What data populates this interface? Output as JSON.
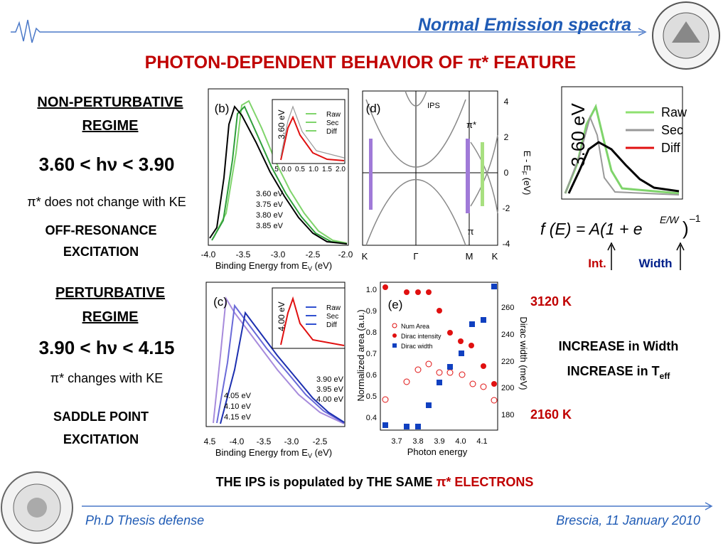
{
  "header": {
    "section": "Normal Emission spectra",
    "title": "PHOTON-DEPENDENT BEHAVIOR OF π* FEATURE"
  },
  "regime1": {
    "heading": [
      "NON-PERTURBATIVE",
      "REGIME"
    ],
    "range": "3.60 < hν < 3.90",
    "note": "π* does not change with KE",
    "excitation": [
      "OFF-RESONANCE",
      "EXCITATION"
    ]
  },
  "regime2": {
    "heading": [
      "PERTURBATIVE",
      "REGIME"
    ],
    "range": "3.90 < hν < 4.15",
    "note": "π* changes with KE",
    "excitation": [
      "SADDLE POINT",
      "EXCITATION"
    ]
  },
  "panel_b": {
    "label": "(b)",
    "inset_label": "3.60 eV",
    "inset_legend": [
      "Raw",
      "Sec",
      "Diff"
    ],
    "inset_xticks": [
      "5",
      "0.0",
      "0.5",
      "1.0",
      "1.5",
      "2.0"
    ],
    "legend": [
      "3.60 eV",
      "3.75 eV",
      "3.80 eV",
      "3.85 eV"
    ],
    "xticks": [
      "-4.0",
      "-3.5",
      "-3.0",
      "-2.5",
      "-2.0"
    ],
    "xlabel": "Binding Energy from E",
    "xlabel_sub": "V",
    "xlabel_unit": " (eV)"
  },
  "panel_c": {
    "label": "(c)",
    "inset_label": "4.00 eV",
    "inset_legend": [
      "Raw",
      "Sec",
      "Diff"
    ],
    "legend_right": [
      "3.90 eV",
      "3.95 eV",
      "4.00 eV"
    ],
    "legend_left": [
      "4.05 eV",
      "4.10 eV",
      "4.15 eV"
    ],
    "xticks": [
      "4.5",
      "-4.0",
      "-3.5",
      "-3.0",
      "-2.5"
    ],
    "xlabel": "Binding Energy from E",
    "xlabel_sub": "V",
    "xlabel_unit": " (eV)"
  },
  "panel_d": {
    "label": "(d)",
    "ips": "IPS",
    "pi_star": "π*",
    "pi": "π",
    "yticks": [
      "4",
      "2",
      "0",
      "-2",
      "-4"
    ],
    "ylabel": "E - E",
    "ylabel_sub": "F",
    "ylabel_unit": " (eV)",
    "xticks": [
      "K",
      "Γ",
      "M",
      "K"
    ]
  },
  "panel_e": {
    "label": "(e)",
    "legend": [
      "Num Area",
      "Dirac intensity",
      "Dirac width"
    ],
    "yticks": [
      "1.0",
      "0.9",
      "0.8",
      "0.7",
      "0.6",
      "0.5",
      "0.4"
    ],
    "ylabel": "Normalized area (a.u.)",
    "y2ticks": [
      "260",
      "240",
      "220",
      "200",
      "180"
    ],
    "y2label": "Dirac width  (meV)",
    "xticks": [
      "3.7",
      "3.8",
      "3.9",
      "4.0",
      "4.1"
    ],
    "xlabel": "Photon energy"
  },
  "fit": {
    "inset_label": "3.60 eV",
    "legend": [
      "Raw",
      "Sec",
      "Diff"
    ],
    "formula": "f (E) = A(1 + e",
    "exponent": "E/W",
    "close": ")",
    "power": "–1",
    "int": "Int.",
    "width": "Width"
  },
  "right": {
    "t_high": "3120 K",
    "width_note": "INCREASE in Width",
    "temp_note": "INCREASE in  T",
    "temp_sub": "eff",
    "t_low": "2160 K"
  },
  "conclusion": {
    "text": "THE IPS is populated by THE SAME ",
    "highlight": "π* ELECTRONS"
  },
  "footer": {
    "left": "Ph.D Thesis defense",
    "right": "Brescia, 11 January 2010"
  }
}
